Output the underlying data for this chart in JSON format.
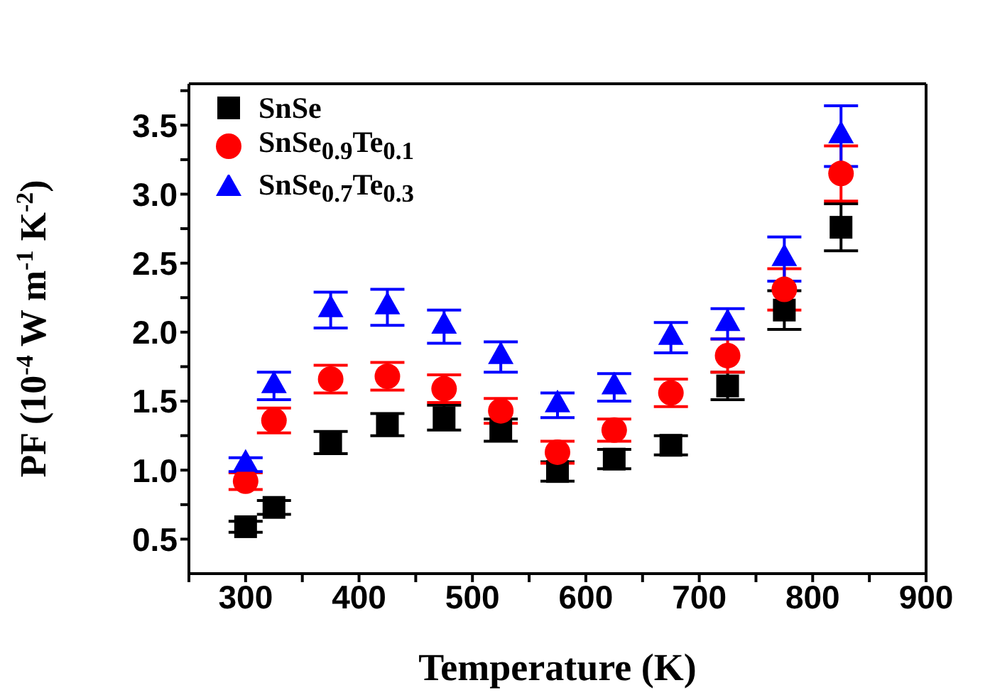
{
  "chart_data": {
    "type": "scatter",
    "xlabel": "Temperature (K)",
    "ylabel": "PF (10$^{-4}$ W m$^{-1}$ K$^{-2}$)",
    "x": [
      300,
      325,
      375,
      425,
      475,
      525,
      575,
      625,
      675,
      725,
      775,
      825
    ],
    "series": [
      {
        "name": "SnSe",
        "color": "#000000",
        "marker": "square",
        "values": [
          0.59,
          0.73,
          1.2,
          1.33,
          1.38,
          1.29,
          0.99,
          1.08,
          1.18,
          1.61,
          2.16,
          2.76
        ],
        "errors": [
          0.04,
          0.05,
          0.08,
          0.08,
          0.09,
          0.08,
          0.07,
          0.07,
          0.07,
          0.1,
          0.14,
          0.17
        ]
      },
      {
        "name": "SnSe$_{0.9}$Te$_{0.1}$",
        "color": "#ff0000",
        "marker": "circle",
        "values": [
          0.92,
          1.36,
          1.66,
          1.68,
          1.59,
          1.43,
          1.13,
          1.29,
          1.56,
          1.83,
          2.31,
          3.15
        ],
        "errors": [
          0.06,
          0.09,
          0.1,
          0.1,
          0.1,
          0.09,
          0.08,
          0.08,
          0.1,
          0.12,
          0.15,
          0.2
        ]
      },
      {
        "name": "SnSe$_{0.7}$Te$_{0.3}$",
        "color": "#0000ff",
        "marker": "triangle",
        "values": [
          1.04,
          1.61,
          2.16,
          2.18,
          2.04,
          1.82,
          1.47,
          1.6,
          1.96,
          2.06,
          2.53,
          3.42
        ],
        "errors": [
          0.05,
          0.1,
          0.13,
          0.13,
          0.12,
          0.11,
          0.09,
          0.1,
          0.11,
          0.11,
          0.16,
          0.22
        ]
      }
    ],
    "xlim": [
      250,
      900
    ],
    "xticks": [
      {
        "value": 250,
        "label": null
      },
      300,
      {
        "value": 350,
        "label": null
      },
      400,
      {
        "value": 450,
        "label": null
      },
      500,
      {
        "value": 550,
        "label": null
      },
      600,
      {
        "value": 650,
        "label": null
      },
      700,
      {
        "value": 750,
        "label": null
      },
      800,
      {
        "value": 850,
        "label": null
      },
      900
    ],
    "ylim": [
      0.25,
      3.8
    ],
    "yticks": [
      0.5,
      {
        "value": 0.75,
        "label": null
      },
      {
        "value": 1,
        "label": "1.0"
      },
      {
        "value": 1.25,
        "label": null
      },
      1.5,
      {
        "value": 1.75,
        "label": null
      },
      {
        "value": 2,
        "label": "2.0"
      },
      {
        "value": 2.25,
        "label": null
      },
      2.5,
      {
        "value": 2.75,
        "label": null
      },
      {
        "value": 3,
        "label": "3.0"
      },
      {
        "value": 3.25,
        "label": null
      },
      3.5,
      {
        "value": 3.75,
        "label": null
      }
    ],
    "legend": "top left"
  }
}
